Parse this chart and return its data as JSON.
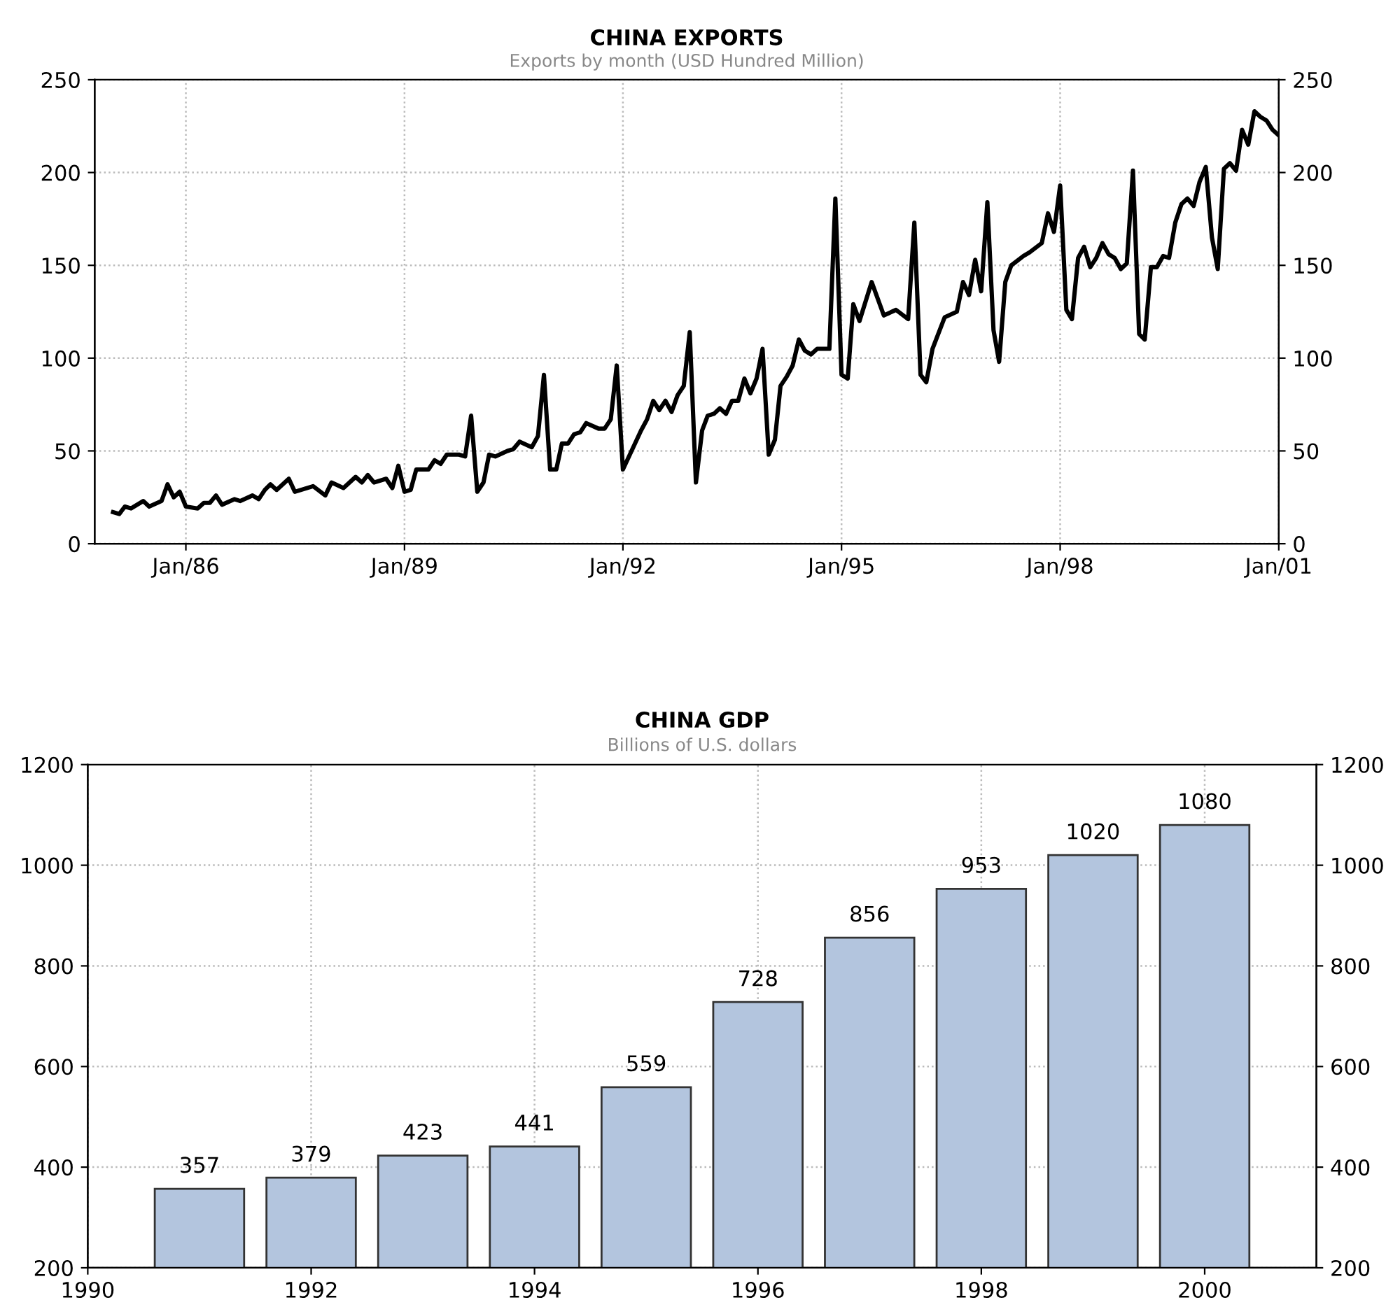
{
  "chart_data": [
    {
      "type": "line",
      "title": "CHINA EXPORTS",
      "subtitle": "Exports by month (USD Hundred Million)",
      "series": [
        {
          "color": "#000000",
          "x": [
            "1985-01",
            "1985-02",
            "1985-03",
            "1985-04",
            "1985-06",
            "1985-07",
            "1985-09",
            "1985-10",
            "1985-11",
            "1985-12",
            "1986-01",
            "1986-03",
            "1986-04",
            "1986-05",
            "1986-06",
            "1986-07",
            "1986-09",
            "1986-10",
            "1986-12",
            "1987-01",
            "1987-02",
            "1987-03",
            "1987-04",
            "1987-06",
            "1987-07",
            "1987-10",
            "1987-12",
            "1988-01",
            "1988-03",
            "1988-05",
            "1988-06",
            "1988-07",
            "1988-08",
            "1988-10",
            "1988-11",
            "1988-12",
            "1989-01",
            "1989-02",
            "1989-03",
            "1989-05",
            "1989-06",
            "1989-07",
            "1989-08",
            "1989-10",
            "1989-11",
            "1989-12",
            "1990-01",
            "1990-02",
            "1990-03",
            "1990-04",
            "1990-06",
            "1990-07",
            "1990-08",
            "1990-10",
            "1990-11",
            "1990-12",
            "1991-01",
            "1991-02",
            "1991-03",
            "1991-04",
            "1991-05",
            "1991-06",
            "1991-07",
            "1991-09",
            "1991-10",
            "1991-11",
            "1991-12",
            "1992-01",
            "1992-04",
            "1992-05",
            "1992-06",
            "1992-07",
            "1992-08",
            "1992-09",
            "1992-10",
            "1992-11",
            "1992-12",
            "1993-01",
            "1993-02",
            "1993-03",
            "1993-04",
            "1993-05",
            "1993-06",
            "1993-07",
            "1993-08",
            "1993-09",
            "1993-10",
            "1993-11",
            "1993-12",
            "1994-01",
            "1994-02",
            "1994-03",
            "1994-04",
            "1994-05",
            "1994-06",
            "1994-07",
            "1994-08",
            "1994-09",
            "1994-10",
            "1994-11",
            "1994-12",
            "1995-01",
            "1995-02",
            "1995-03",
            "1995-04",
            "1995-06",
            "1995-08",
            "1995-10",
            "1995-12",
            "1996-01",
            "1996-02",
            "1996-03",
            "1996-04",
            "1996-06",
            "1996-08",
            "1996-09",
            "1996-10",
            "1996-11",
            "1996-12",
            "1997-01",
            "1997-02",
            "1997-03",
            "1997-04",
            "1997-05",
            "1997-07",
            "1997-08",
            "1997-10",
            "1997-11",
            "1997-12",
            "1998-01",
            "1998-02",
            "1998-03",
            "1998-04",
            "1998-05",
            "1998-06",
            "1998-07",
            "1998-08",
            "1998-09",
            "1998-10",
            "1998-11",
            "1998-12",
            "1999-01",
            "1999-02",
            "1999-03",
            "1999-04",
            "1999-05",
            "1999-06",
            "1999-07",
            "1999-08",
            "1999-09",
            "1999-10",
            "1999-11",
            "1999-12",
            "2000-01",
            "2000-02",
            "2000-03",
            "2000-04",
            "2000-05",
            "2000-06",
            "2000-07",
            "2000-08",
            "2000-09",
            "2000-10",
            "2000-11",
            "2000-12",
            "2001-01"
          ],
          "values": [
            17,
            16,
            20,
            19,
            23,
            20,
            23,
            32,
            25,
            28,
            20,
            19,
            22,
            22,
            26,
            21,
            24,
            23,
            26,
            24,
            29,
            32,
            29,
            35,
            28,
            31,
            26,
            33,
            30,
            36,
            33,
            37,
            33,
            35,
            30,
            42,
            28,
            29,
            40,
            40,
            45,
            43,
            48,
            48,
            47,
            69,
            28,
            33,
            48,
            47,
            50,
            51,
            55,
            52,
            58,
            91,
            40,
            40,
            54,
            54,
            59,
            60,
            65,
            62,
            62,
            67,
            96,
            40,
            61,
            67,
            77,
            72,
            77,
            71,
            80,
            85,
            114,
            33,
            61,
            69,
            70,
            73,
            70,
            77,
            77,
            89,
            81,
            89,
            105,
            48,
            56,
            85,
            90,
            96,
            110,
            104,
            102,
            105,
            105,
            105,
            186,
            91,
            89,
            129,
            120,
            141,
            123,
            126,
            121,
            173,
            91,
            87,
            105,
            122,
            125,
            141,
            134,
            153,
            136,
            184,
            115,
            98,
            141,
            150,
            155,
            157,
            162,
            178,
            168,
            193,
            126,
            121,
            154,
            160,
            149,
            154,
            162,
            156,
            154,
            148,
            151,
            201,
            113,
            110,
            149,
            149,
            155,
            154,
            173,
            183,
            186,
            182,
            195,
            203,
            165,
            148,
            202,
            205,
            201,
            223,
            215,
            233,
            230,
            228,
            223,
            220
          ]
        }
      ],
      "xlim": [
        "1984-10",
        "2001-01"
      ],
      "xticks": [
        {
          "value": "1986-01",
          "label": "Jan/86"
        },
        {
          "value": "1989-01",
          "label": "Jan/89"
        },
        {
          "value": "1992-01",
          "label": "Jan/92"
        },
        {
          "value": "1995-01",
          "label": "Jan/95"
        },
        {
          "value": "1998-01",
          "label": "Jan/98"
        },
        {
          "value": "2001-01",
          "label": "Jan/01"
        }
      ],
      "ylim": [
        0,
        250
      ],
      "yticks": [
        0,
        50,
        100,
        150,
        200,
        250
      ],
      "y2lim": [
        0,
        250
      ],
      "y2ticks": [
        0,
        50,
        100,
        150,
        200,
        250
      ],
      "grid": true,
      "line_style": "solid",
      "marker": "none"
    },
    {
      "type": "bar",
      "title": "CHINA GDP",
      "subtitle": "Billions of U.S. dollars",
      "x": [
        1991,
        1992,
        1993,
        1994,
        1995,
        1996,
        1997,
        1998,
        1999,
        2000
      ],
      "values": [
        357,
        379,
        423,
        441,
        559,
        728,
        856,
        953,
        1020,
        1080
      ],
      "color": "#b3c5de",
      "xlim": [
        1990,
        2001
      ],
      "xticks": [
        1990,
        1992,
        1994,
        1996,
        1998,
        2000
      ],
      "ylim": [
        200,
        1200
      ],
      "yticks": [
        200,
        400,
        600,
        800,
        1000,
        1200
      ],
      "y2lim": [
        200,
        1200
      ],
      "y2ticks": [
        200,
        400,
        600,
        800,
        1000,
        1200
      ],
      "grid": true,
      "data_labels": true
    }
  ]
}
